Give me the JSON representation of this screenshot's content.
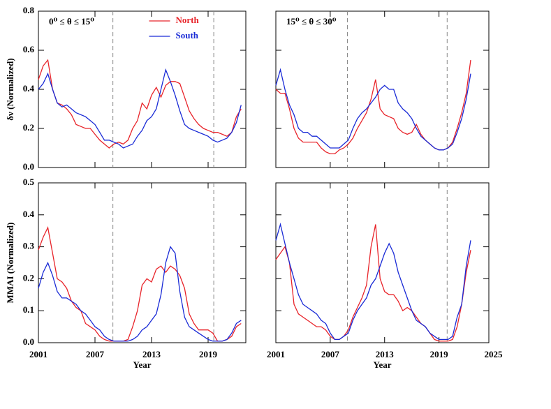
{
  "chart_data": [
    {
      "type": "line",
      "annotation": "0⁰ ≤ θ ≤ 15⁰",
      "ylabel": "δν (Normalized)",
      "legend": "top",
      "xtick_labels": false,
      "ytick_labels": true,
      "xlim": [
        2001,
        2023
      ],
      "ylim": [
        0,
        0.8
      ],
      "xticks": [
        2001,
        2007,
        2013,
        2019
      ],
      "yticks": [
        {
          "value": 0,
          "label": "0.0"
        },
        0.2,
        0.4,
        0.6,
        0.8
      ],
      "vlines": [
        2008.9,
        2019.6
      ],
      "x": [
        2001,
        2001.5,
        2002,
        2002.5,
        2003,
        2003.5,
        2004,
        2004.5,
        2005,
        2005.5,
        2006,
        2006.5,
        2007,
        2007.5,
        2008,
        2008.5,
        2009,
        2009.5,
        2010,
        2010.5,
        2011,
        2011.5,
        2012,
        2012.5,
        2013,
        2013.5,
        2014,
        2014.5,
        2015,
        2015.5,
        2016,
        2016.5,
        2017,
        2017.5,
        2018,
        2018.5,
        2019,
        2019.5,
        2020,
        2020.5,
        2021,
        2021.5,
        2022,
        2022.5
      ],
      "series": [
        {
          "name": "North",
          "color": "#e8242a",
          "values": [
            0.45,
            0.52,
            0.55,
            0.4,
            0.33,
            0.32,
            0.3,
            0.27,
            0.22,
            0.21,
            0.2,
            0.2,
            0.17,
            0.14,
            0.12,
            0.1,
            0.12,
            0.13,
            0.12,
            0.14,
            0.2,
            0.24,
            0.33,
            0.3,
            0.37,
            0.41,
            0.36,
            0.42,
            0.44,
            0.44,
            0.43,
            0.36,
            0.29,
            0.25,
            0.22,
            0.2,
            0.19,
            0.18,
            0.18,
            0.17,
            0.16,
            0.18,
            0.26,
            0.3
          ]
        },
        {
          "name": "South",
          "color": "#1a2bd6",
          "values": [
            0.4,
            0.43,
            0.48,
            0.4,
            0.33,
            0.31,
            0.32,
            0.3,
            0.28,
            0.27,
            0.26,
            0.24,
            0.22,
            0.18,
            0.14,
            0.14,
            0.13,
            0.12,
            0.1,
            0.11,
            0.12,
            0.16,
            0.19,
            0.24,
            0.26,
            0.3,
            0.4,
            0.5,
            0.44,
            0.37,
            0.29,
            0.22,
            0.2,
            0.19,
            0.18,
            0.17,
            0.16,
            0.14,
            0.13,
            0.14,
            0.15,
            0.18,
            0.23,
            0.32
          ]
        }
      ]
    },
    {
      "type": "line",
      "annotation": "15⁰ ≤ θ ≤ 30⁰",
      "xtick_labels": false,
      "ytick_labels": false,
      "xlim": [
        2001,
        2024.5
      ],
      "ylim": [
        0,
        0.8
      ],
      "xticks": [
        2001,
        2007,
        2013,
        2019
      ],
      "yticks": [
        0,
        0.2,
        0.4,
        0.6,
        0.8
      ],
      "vlines": [
        2008.9,
        2019.9
      ],
      "x": [
        2001,
        2001.5,
        2002,
        2002.5,
        2003,
        2003.5,
        2004,
        2004.5,
        2005,
        2005.5,
        2006,
        2006.5,
        2007,
        2007.5,
        2008,
        2008.5,
        2009,
        2009.5,
        2010,
        2010.5,
        2011,
        2011.5,
        2012,
        2012.5,
        2013,
        2013.5,
        2014,
        2014.5,
        2015,
        2015.5,
        2016,
        2016.5,
        2017,
        2017.5,
        2018,
        2018.5,
        2019,
        2019.5,
        2020,
        2020.5,
        2021,
        2021.5,
        2022,
        2022.5
      ],
      "series": [
        {
          "name": "North",
          "color": "#e8242a",
          "values": [
            0.4,
            0.38,
            0.38,
            0.3,
            0.2,
            0.15,
            0.13,
            0.13,
            0.13,
            0.13,
            0.1,
            0.08,
            0.07,
            0.07,
            0.09,
            0.1,
            0.12,
            0.15,
            0.2,
            0.24,
            0.28,
            0.35,
            0.45,
            0.3,
            0.27,
            0.26,
            0.25,
            0.2,
            0.18,
            0.17,
            0.18,
            0.22,
            0.17,
            0.14,
            0.12,
            0.1,
            0.09,
            0.09,
            0.1,
            0.13,
            0.2,
            0.28,
            0.38,
            0.55
          ]
        },
        {
          "name": "South",
          "color": "#1a2bd6",
          "values": [
            0.42,
            0.5,
            0.4,
            0.32,
            0.27,
            0.2,
            0.18,
            0.18,
            0.16,
            0.16,
            0.14,
            0.12,
            0.1,
            0.1,
            0.1,
            0.12,
            0.14,
            0.2,
            0.25,
            0.28,
            0.3,
            0.33,
            0.36,
            0.4,
            0.42,
            0.4,
            0.4,
            0.33,
            0.3,
            0.28,
            0.25,
            0.2,
            0.16,
            0.14,
            0.12,
            0.1,
            0.09,
            0.09,
            0.1,
            0.12,
            0.18,
            0.25,
            0.35,
            0.48
          ]
        }
      ]
    },
    {
      "type": "line",
      "ylabel": "MMAI (Normalized)",
      "xlabel": "Year",
      "xtick_labels": true,
      "ytick_labels": true,
      "xlim": [
        2001,
        2023
      ],
      "ylim": [
        0,
        0.5
      ],
      "xticks": [
        2001,
        2007,
        2013,
        2019
      ],
      "yticks": [
        {
          "value": 0,
          "label": "0.0"
        },
        0.1,
        0.2,
        0.3,
        0.4,
        0.5
      ],
      "vlines": [
        2008.9,
        2019.6
      ],
      "x": [
        2001,
        2001.5,
        2002,
        2002.5,
        2003,
        2003.5,
        2004,
        2004.5,
        2005,
        2005.5,
        2006,
        2006.5,
        2007,
        2007.5,
        2008,
        2008.5,
        2009,
        2009.5,
        2010,
        2010.5,
        2011,
        2011.5,
        2012,
        2012.5,
        2013,
        2013.5,
        2014,
        2014.5,
        2015,
        2015.5,
        2016,
        2016.5,
        2017,
        2017.5,
        2018,
        2018.5,
        2019,
        2019.5,
        2020,
        2020.5,
        2021,
        2021.5,
        2022,
        2022.5
      ],
      "series": [
        {
          "name": "North",
          "color": "#e8242a",
          "values": [
            0.29,
            0.33,
            0.36,
            0.28,
            0.2,
            0.19,
            0.17,
            0.13,
            0.11,
            0.1,
            0.06,
            0.05,
            0.04,
            0.02,
            0.01,
            0.005,
            0.005,
            0.005,
            0.005,
            0.01,
            0.05,
            0.1,
            0.18,
            0.2,
            0.19,
            0.23,
            0.24,
            0.22,
            0.24,
            0.23,
            0.21,
            0.17,
            0.09,
            0.06,
            0.04,
            0.04,
            0.04,
            0.03,
            0.005,
            0.005,
            0.01,
            0.02,
            0.05,
            0.06
          ]
        },
        {
          "name": "South",
          "color": "#1a2bd6",
          "values": [
            0.17,
            0.22,
            0.25,
            0.21,
            0.16,
            0.14,
            0.14,
            0.13,
            0.12,
            0.1,
            0.09,
            0.07,
            0.05,
            0.04,
            0.02,
            0.01,
            0.005,
            0.005,
            0.005,
            0.005,
            0.01,
            0.02,
            0.04,
            0.05,
            0.07,
            0.09,
            0.15,
            0.25,
            0.3,
            0.28,
            0.16,
            0.08,
            0.05,
            0.04,
            0.03,
            0.02,
            0.01,
            0.005,
            0.005,
            0.005,
            0.01,
            0.03,
            0.06,
            0.07
          ]
        }
      ]
    },
    {
      "type": "line",
      "xlabel": "Year",
      "xtick_labels": true,
      "ytick_labels": false,
      "xlim": [
        2001,
        2024.5
      ],
      "ylim": [
        0,
        0.5
      ],
      "xticks": [
        2001,
        2007,
        2013,
        2019,
        2025
      ],
      "yticks": [
        0,
        0.1,
        0.2,
        0.3,
        0.4,
        0.5
      ],
      "vlines": [
        2008.9,
        2019.9
      ],
      "x": [
        2001,
        2001.5,
        2002,
        2002.5,
        2003,
        2003.5,
        2004,
        2004.5,
        2005,
        2005.5,
        2006,
        2006.5,
        2007,
        2007.5,
        2008,
        2008.5,
        2009,
        2009.5,
        2010,
        2010.5,
        2011,
        2011.5,
        2012,
        2012.5,
        2013,
        2013.5,
        2014,
        2014.5,
        2015,
        2015.5,
        2016,
        2016.5,
        2017,
        2017.5,
        2018,
        2018.5,
        2019,
        2019.5,
        2020,
        2020.5,
        2021,
        2021.5,
        2022,
        2022.5
      ],
      "series": [
        {
          "name": "North",
          "color": "#e8242a",
          "values": [
            0.26,
            0.28,
            0.3,
            0.25,
            0.12,
            0.09,
            0.08,
            0.07,
            0.06,
            0.05,
            0.05,
            0.04,
            0.02,
            0.01,
            0.01,
            0.02,
            0.04,
            0.08,
            0.11,
            0.14,
            0.18,
            0.3,
            0.37,
            0.2,
            0.16,
            0.15,
            0.15,
            0.13,
            0.1,
            0.11,
            0.1,
            0.08,
            0.06,
            0.05,
            0.03,
            0.01,
            0.005,
            0.005,
            0.005,
            0.01,
            0.05,
            0.12,
            0.22,
            0.29
          ]
        },
        {
          "name": "South",
          "color": "#1a2bd6",
          "values": [
            0.32,
            0.37,
            0.31,
            0.25,
            0.2,
            0.15,
            0.12,
            0.11,
            0.1,
            0.09,
            0.07,
            0.06,
            0.03,
            0.01,
            0.01,
            0.02,
            0.03,
            0.07,
            0.1,
            0.12,
            0.14,
            0.18,
            0.2,
            0.24,
            0.28,
            0.31,
            0.28,
            0.22,
            0.18,
            0.14,
            0.1,
            0.07,
            0.06,
            0.05,
            0.03,
            0.02,
            0.01,
            0.01,
            0.01,
            0.02,
            0.08,
            0.12,
            0.24,
            0.32
          ]
        }
      ]
    }
  ]
}
